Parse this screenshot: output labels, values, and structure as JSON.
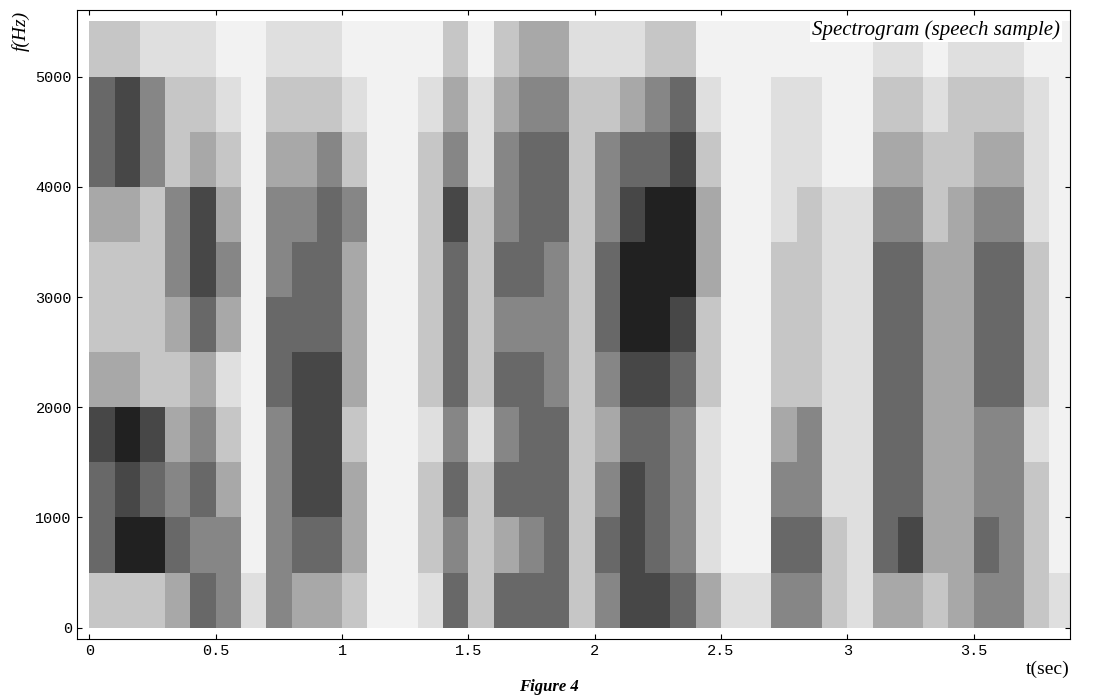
{
  "chart_data": {
    "type": "heatmap",
    "title": "Spectrogram (speech sample)",
    "caption": "Figure 4",
    "x_label": "t(sec)",
    "y_label": "f(Hz)",
    "xlim": [
      -0.05,
      3.88
    ],
    "ylim": [
      -100,
      5600
    ],
    "xticks": [
      0,
      0.5,
      1,
      1.5,
      2,
      2.5,
      3,
      3.5
    ],
    "yticks": [
      0,
      1000,
      2000,
      3000,
      4000,
      5000
    ],
    "color": "Greys",
    "color_range": [
      0,
      9
    ],
    "x_edges": [
      0,
      0.1,
      0.2,
      0.3,
      0.4,
      0.5,
      0.6,
      0.7,
      0.8,
      0.9,
      1.0,
      1.1,
      1.2,
      1.3,
      1.4,
      1.5,
      1.6,
      1.7,
      1.8,
      1.9,
      2.0,
      2.1,
      2.2,
      2.3,
      2.4,
      2.5,
      2.6,
      2.7,
      2.8,
      2.9,
      3.0,
      3.1,
      3.2,
      3.3,
      3.4,
      3.5,
      3.6,
      3.7,
      3.8,
      3.9
    ],
    "y_edges": [
      0,
      500,
      1000,
      1500,
      2000,
      2500,
      3000,
      3500,
      4000,
      4500,
      5000,
      5500
    ],
    "cells": [
      [
        3,
        6,
        6,
        7,
        4,
        3,
        3,
        4,
        6,
        6,
        3
      ],
      [
        3,
        8,
        7,
        8,
        4,
        3,
        3,
        4,
        7,
        7,
        3
      ],
      [
        3,
        8,
        6,
        7,
        3,
        3,
        3,
        3,
        5,
        5,
        2
      ],
      [
        4,
        6,
        5,
        4,
        3,
        4,
        5,
        5,
        3,
        3,
        2
      ],
      [
        6,
        5,
        6,
        5,
        4,
        6,
        7,
        7,
        4,
        3,
        2
      ],
      [
        5,
        5,
        4,
        3,
        2,
        4,
        5,
        4,
        3,
        2,
        1
      ],
      [
        2,
        1,
        1,
        1,
        1,
        1,
        1,
        1,
        1,
        1,
        1
      ],
      [
        5,
        5,
        5,
        5,
        6,
        6,
        5,
        5,
        4,
        3,
        2
      ],
      [
        4,
        6,
        7,
        7,
        7,
        6,
        6,
        5,
        4,
        3,
        2
      ],
      [
        4,
        6,
        7,
        7,
        7,
        6,
        6,
        6,
        5,
        3,
        2
      ],
      [
        3,
        4,
        4,
        3,
        4,
        4,
        4,
        5,
        3,
        2,
        1
      ],
      [
        1,
        1,
        1,
        1,
        1,
        1,
        1,
        1,
        1,
        1,
        1
      ],
      [
        1,
        1,
        1,
        1,
        1,
        1,
        1,
        1,
        1,
        1,
        1
      ],
      [
        2,
        3,
        3,
        2,
        3,
        3,
        3,
        3,
        3,
        2,
        1
      ],
      [
        6,
        5,
        6,
        5,
        6,
        6,
        6,
        7,
        5,
        4,
        3
      ],
      [
        3,
        3,
        3,
        2,
        3,
        3,
        3,
        3,
        2,
        2,
        1
      ],
      [
        6,
        4,
        6,
        5,
        6,
        5,
        6,
        5,
        5,
        4,
        3
      ],
      [
        6,
        5,
        6,
        6,
        6,
        5,
        6,
        6,
        6,
        5,
        4
      ],
      [
        6,
        6,
        6,
        6,
        5,
        5,
        5,
        6,
        6,
        5,
        4
      ],
      [
        3,
        3,
        3,
        3,
        3,
        3,
        3,
        3,
        3,
        3,
        2
      ],
      [
        5,
        6,
        5,
        4,
        5,
        6,
        6,
        5,
        5,
        3,
        2
      ],
      [
        7,
        7,
        7,
        6,
        7,
        8,
        8,
        7,
        6,
        4,
        2
      ],
      [
        7,
        6,
        6,
        6,
        7,
        8,
        8,
        8,
        6,
        5,
        3
      ],
      [
        6,
        5,
        5,
        5,
        6,
        7,
        8,
        8,
        7,
        6,
        3
      ],
      [
        4,
        2,
        2,
        2,
        3,
        3,
        4,
        4,
        3,
        2,
        1
      ],
      [
        2,
        1,
        1,
        1,
        1,
        1,
        1,
        1,
        1,
        1,
        1
      ],
      [
        2,
        1,
        1,
        1,
        1,
        1,
        1,
        1,
        1,
        1,
        1
      ],
      [
        5,
        6,
        5,
        4,
        3,
        3,
        3,
        2,
        2,
        2,
        1
      ],
      [
        5,
        6,
        5,
        5,
        3,
        3,
        3,
        3,
        2,
        2,
        1
      ],
      [
        3,
        3,
        2,
        2,
        2,
        2,
        2,
        2,
        1,
        1,
        1
      ],
      [
        2,
        2,
        2,
        2,
        2,
        2,
        2,
        2,
        1,
        1,
        1
      ],
      [
        4,
        6,
        6,
        6,
        6,
        6,
        6,
        5,
        4,
        3,
        2
      ],
      [
        4,
        7,
        6,
        6,
        6,
        6,
        6,
        5,
        4,
        3,
        2
      ],
      [
        3,
        4,
        4,
        4,
        4,
        4,
        4,
        3,
        3,
        2,
        1
      ],
      [
        4,
        4,
        4,
        4,
        4,
        4,
        4,
        4,
        3,
        3,
        2
      ],
      [
        5,
        6,
        5,
        5,
        6,
        6,
        6,
        5,
        4,
        3,
        2
      ],
      [
        5,
        5,
        5,
        5,
        6,
        6,
        6,
        5,
        4,
        3,
        2
      ],
      [
        3,
        3,
        3,
        2,
        3,
        3,
        3,
        2,
        2,
        2,
        1
      ],
      [
        2,
        1,
        1,
        1,
        1,
        1,
        1,
        1,
        1,
        1,
        1
      ]
    ]
  }
}
